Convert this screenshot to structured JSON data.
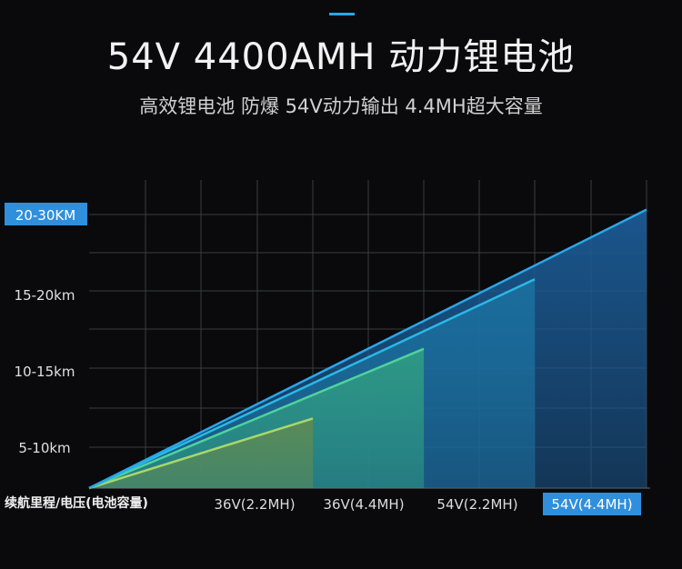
{
  "header": {
    "title": "54V 4400AMH 动力锂电池",
    "subtitle": "高效锂电池 防爆 54V动力输出 4.4MH超大容量"
  },
  "colors": {
    "background": "#0a0a0c",
    "accent": "#2aa7e6",
    "highlight_label": "#2f8fdc",
    "grid": "#3a3c40"
  },
  "chart_data": {
    "type": "area",
    "title": "",
    "xlabel": "续航里程/电压(电池容量)",
    "ylabel": "",
    "categories": [
      "36V(2.2MH)",
      "36V(4.4MH)",
      "54V(2.2MH)",
      "54V(4.4MH)"
    ],
    "y_tick_labels": [
      "5-10km",
      "10-15km",
      "15-20km",
      "20-30KM"
    ],
    "highlight_y_tick": "20-30KM",
    "highlight_category": "54V(4.4MH)",
    "ylim": [
      0,
      4.4
    ],
    "grid": true,
    "series": [
      {
        "category": "36V(2.2MH)",
        "value": 1,
        "color": "#5c8a55"
      },
      {
        "category": "36V(4.4MH)",
        "value": 2,
        "color": "#2f9a83"
      },
      {
        "category": "54V(2.2MH)",
        "value": 3,
        "color": "#1b6f9e"
      },
      {
        "category": "54V(4.4MH)",
        "value": 4,
        "color": "#1b5a94"
      }
    ]
  }
}
